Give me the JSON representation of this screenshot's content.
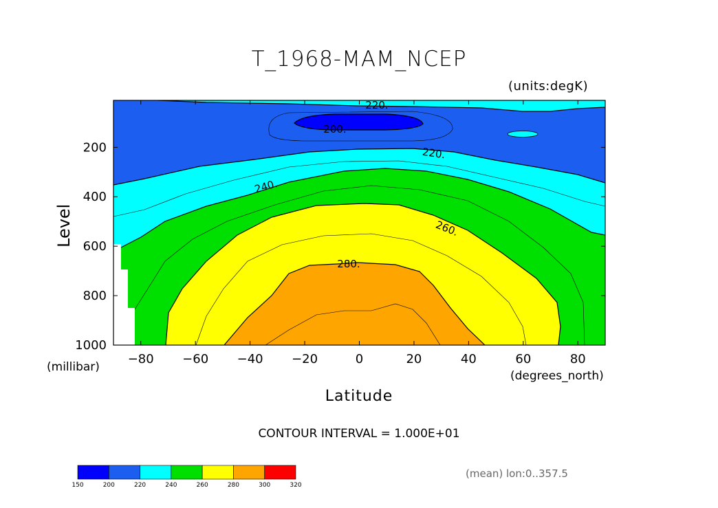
{
  "chart_data": {
    "type": "heatmap",
    "title": "T_1968-MAM_NCEP",
    "units": "(units:degK)",
    "ylabel": "Level",
    "ylabel_units": "(millibar)",
    "xlabel": "Latitude",
    "xlabel_units": "(degrees_north)",
    "xlim": [
      -90,
      90
    ],
    "ylim": [
      1000,
      10
    ],
    "y_reversed": true,
    "x_ticks": [
      "-80",
      "-60",
      "-40",
      "-20",
      "0",
      "20",
      "40",
      "60",
      "80"
    ],
    "x_tick_values": [
      -80,
      -60,
      -40,
      -20,
      0,
      20,
      40,
      60,
      80
    ],
    "y_ticks": [
      "200",
      "400",
      "600",
      "800",
      "1000"
    ],
    "y_tick_values": [
      200,
      400,
      600,
      800,
      1000
    ],
    "contour_interval": "CONTOUR INTERVAL = 1.000E+01",
    "contour_labels": [
      "220.",
      "200.",
      "220.",
      "240.",
      "260.",
      "280."
    ],
    "note": "(mean) lon:0..357.5",
    "colorbar": {
      "levels": [
        "150",
        "200",
        "220",
        "240",
        "260",
        "280",
        "300",
        "320"
      ],
      "colors": [
        "#0000ff",
        "#1c5ff0",
        "#00ffff",
        "#00e000",
        "#ffff00",
        "#ffa500",
        "#ff0000"
      ]
    },
    "fill_colors": {
      "lt200": "#0000ff",
      "200_220": "#1c5ff0",
      "220_240": "#00ffff",
      "240_260": "#00e000",
      "260_280": "#ffff00",
      "280_300": "#ffa500"
    }
  }
}
